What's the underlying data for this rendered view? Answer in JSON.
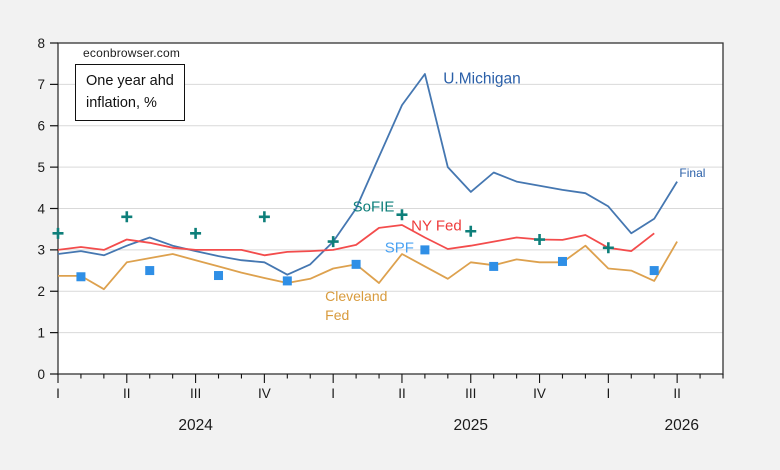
{
  "watermark": {
    "text": "econbrowser.com"
  },
  "note_box": {
    "line1": "One year ahd",
    "line2": "inflation, %"
  },
  "colors": {
    "background": "#f2f2f2",
    "plot_background": "#ffffff",
    "frame": "#333333",
    "gridline": "#d9d9d9",
    "axis_text": "#1a1a1a",
    "umichigan_line": "#4577b1",
    "umichigan_label": "#2a5fa8",
    "nyfed_line": "#f34c4c",
    "nyfed_label": "#ee3a3a",
    "cleveland_line": "#dda14e",
    "cleveland_label": "#d89b3d",
    "sofie": "#0e7f7a",
    "spf_marker": "#2f8fe6",
    "spf_label": "#4aa2f2"
  },
  "chart_data": {
    "type": "line",
    "title": "One year ahd inflation, %",
    "x_unit": "months since 2024-01, monthly frequency; quarter ticks I-IV",
    "grid": "horizontal gridlines at each integer",
    "y_axis": {
      "min": 0,
      "max": 8,
      "ticks": [
        0,
        1,
        2,
        3,
        4,
        5,
        6,
        7,
        8
      ]
    },
    "x_axis": {
      "months_span": 29,
      "minor_tick_every_month": true,
      "quarter_tick_months": [
        0,
        3,
        6,
        9,
        12,
        15,
        18,
        21,
        24,
        27
      ],
      "quarter_labels": [
        "I",
        "II",
        "III",
        "IV",
        "I",
        "II",
        "III",
        "IV",
        "I",
        "II"
      ],
      "year_labels": [
        {
          "text": "2024",
          "month": 6
        },
        {
          "text": "2025",
          "month": 18
        },
        {
          "text": "2026",
          "month": 27.2
        }
      ]
    },
    "series": [
      {
        "id": "umichigan",
        "name": "U.Michigan",
        "kind": "line",
        "color": "#4577b1",
        "points": [
          [
            0,
            2.9
          ],
          [
            1,
            2.97
          ],
          [
            2,
            2.87
          ],
          [
            3,
            3.1
          ],
          [
            4,
            3.3
          ],
          [
            5,
            3.1
          ],
          [
            6,
            2.97
          ],
          [
            7,
            2.85
          ],
          [
            8,
            2.75
          ],
          [
            9,
            2.7
          ],
          [
            10,
            2.4
          ],
          [
            11,
            2.65
          ],
          [
            12,
            3.2
          ],
          [
            13,
            4.0
          ],
          [
            14,
            5.25
          ],
          [
            15,
            6.5
          ],
          [
            16,
            7.25
          ],
          [
            17,
            5.0
          ],
          [
            18,
            4.4
          ],
          [
            19,
            4.87
          ],
          [
            20,
            4.65
          ],
          [
            21,
            4.55
          ],
          [
            22,
            4.45
          ],
          [
            23,
            4.37
          ],
          [
            24,
            4.05
          ],
          [
            25,
            3.4
          ],
          [
            26,
            3.75
          ],
          [
            27,
            4.65
          ]
        ]
      },
      {
        "id": "nyfed",
        "name": "NY Fed",
        "kind": "line",
        "color": "#f34c4c",
        "points": [
          [
            0,
            3.0
          ],
          [
            1,
            3.07
          ],
          [
            2,
            3.0
          ],
          [
            3,
            3.25
          ],
          [
            4,
            3.17
          ],
          [
            5,
            3.05
          ],
          [
            6,
            3.0
          ],
          [
            7,
            3.0
          ],
          [
            8,
            3.0
          ],
          [
            9,
            2.87
          ],
          [
            10,
            2.95
          ],
          [
            11,
            2.97
          ],
          [
            12,
            3.0
          ],
          [
            13,
            3.12
          ],
          [
            14,
            3.53
          ],
          [
            15,
            3.6
          ],
          [
            16,
            3.3
          ],
          [
            17,
            3.02
          ],
          [
            18,
            3.1
          ],
          [
            19,
            3.2
          ],
          [
            20,
            3.3
          ],
          [
            21,
            3.25
          ],
          [
            22,
            3.24
          ],
          [
            23,
            3.36
          ],
          [
            24,
            3.05
          ],
          [
            25,
            2.97
          ],
          [
            26,
            3.4
          ]
        ]
      },
      {
        "id": "cleveland",
        "name": "Cleveland Fed",
        "kind": "line",
        "color": "#dda14e",
        "points": [
          [
            0,
            2.37
          ],
          [
            1,
            2.37
          ],
          [
            2,
            2.05
          ],
          [
            3,
            2.7
          ],
          [
            4,
            2.8
          ],
          [
            5,
            2.9
          ],
          [
            6,
            2.75
          ],
          [
            7,
            2.6
          ],
          [
            8,
            2.45
          ],
          [
            9,
            2.32
          ],
          [
            10,
            2.2
          ],
          [
            11,
            2.3
          ],
          [
            12,
            2.55
          ],
          [
            13,
            2.65
          ],
          [
            14,
            2.2
          ],
          [
            15,
            2.9
          ],
          [
            16,
            2.6
          ],
          [
            17,
            2.3
          ],
          [
            18,
            2.7
          ],
          [
            19,
            2.63
          ],
          [
            20,
            2.77
          ],
          [
            21,
            2.7
          ],
          [
            22,
            2.7
          ],
          [
            23,
            3.1
          ],
          [
            24,
            2.55
          ],
          [
            25,
            2.5
          ],
          [
            26,
            2.25
          ],
          [
            27,
            3.2
          ]
        ]
      },
      {
        "id": "sofie",
        "name": "SoFIE",
        "kind": "scatter",
        "marker": "plus",
        "color": "#0e7f7a",
        "points": [
          [
            0,
            3.4
          ],
          [
            3,
            3.8
          ],
          [
            6,
            3.4
          ],
          [
            9,
            3.8
          ],
          [
            12,
            3.2
          ],
          [
            15,
            3.85
          ],
          [
            18,
            3.45
          ],
          [
            21,
            3.25
          ],
          [
            24,
            3.05
          ]
        ]
      },
      {
        "id": "spf",
        "name": "SPF",
        "kind": "scatter",
        "marker": "square",
        "color": "#2f8fe6",
        "points": [
          [
            1,
            2.35
          ],
          [
            4,
            2.5
          ],
          [
            7,
            2.38
          ],
          [
            10,
            2.25
          ],
          [
            13,
            2.65
          ],
          [
            16,
            3.0
          ],
          [
            19,
            2.6
          ],
          [
            22,
            2.72
          ],
          [
            26,
            2.5
          ]
        ]
      }
    ],
    "labels": [
      {
        "text": "U.Michigan",
        "m": 16.8,
        "v": 7.02,
        "color": "#2a5fa8",
        "size": 15.5,
        "for": "umichigan"
      },
      {
        "text": "SoFIE",
        "m": 12.85,
        "v": 3.93,
        "color": "#0e7f7a",
        "size": 15,
        "for": "sofie"
      },
      {
        "text": "NY Fed",
        "m": 15.4,
        "v": 3.47,
        "color": "#ee3a3a",
        "size": 15,
        "for": "nyfed"
      },
      {
        "text": "SPF",
        "m": 14.25,
        "v": 2.94,
        "color": "#4aa2f2",
        "size": 15,
        "for": "spf"
      },
      {
        "text": "Cleveland",
        "m": 11.65,
        "v": 1.77,
        "color": "#d89b3d",
        "size": 14,
        "for": "cleveland"
      },
      {
        "text": "Fed",
        "m": 11.65,
        "v": 1.3,
        "color": "#d89b3d",
        "size": 14,
        "for": "cleveland"
      },
      {
        "text": "Final",
        "m": 27.1,
        "v": 4.76,
        "color": "#2a5fa8",
        "size": 12,
        "for": "umichigan"
      }
    ]
  }
}
